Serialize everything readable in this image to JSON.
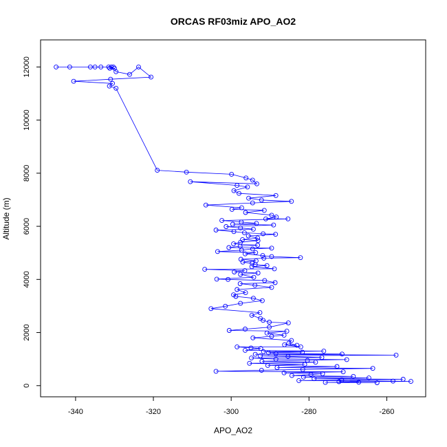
{
  "chart_data": {
    "type": "scatter",
    "title": "ORCAS RF03miz APO_AO2",
    "xlabel": "APO_AO2",
    "ylabel": "Altitude (m)",
    "xlim": [
      -349,
      -250
    ],
    "ylim": [
      -420,
      13020
    ],
    "xticks": [
      -340,
      -320,
      -300,
      -280,
      -260
    ],
    "yticks": [
      0,
      2000,
      4000,
      6000,
      8000,
      10000,
      12000
    ],
    "grid": false,
    "marker": "open-circle",
    "connect_points": true,
    "color": "#0000ff",
    "series": [
      {
        "points": [
          [
            -345,
            12000
          ],
          [
            -341.5,
            12000
          ],
          [
            -336.2,
            12000
          ],
          [
            -335,
            12000
          ],
          [
            -333.5,
            12000
          ],
          [
            -331.5,
            12000
          ],
          [
            -330.8,
            12000
          ],
          [
            -330.3,
            12000
          ],
          [
            -331.2,
            11950
          ],
          [
            -330,
            11950
          ],
          [
            -329.6,
            11820
          ],
          [
            -326.1,
            11720
          ],
          [
            -323.8,
            12000
          ],
          [
            -320.6,
            11620
          ],
          [
            -331,
            11540
          ],
          [
            -340.5,
            11460
          ],
          [
            -330.5,
            11380
          ],
          [
            -331.3,
            11280
          ],
          [
            -329.6,
            11200
          ],
          [
            -319,
            8110
          ],
          [
            -311.5,
            8040
          ],
          [
            -299.9,
            7960
          ],
          [
            -296.2,
            7820
          ],
          [
            -294.5,
            7740
          ],
          [
            -293.4,
            7600
          ],
          [
            -310.5,
            7680
          ],
          [
            -298.5,
            7540
          ],
          [
            -295.8,
            7480
          ],
          [
            -299.3,
            7340
          ],
          [
            -298,
            7240
          ],
          [
            -288.5,
            7160
          ],
          [
            -295.5,
            7060
          ],
          [
            -292.2,
            6990
          ],
          [
            -284.5,
            6940
          ],
          [
            -294.5,
            6880
          ],
          [
            -306.5,
            6800
          ],
          [
            -297.3,
            6700
          ],
          [
            -299.8,
            6640
          ],
          [
            -291.5,
            6600
          ],
          [
            -296.3,
            6520
          ],
          [
            -289.6,
            6420
          ],
          [
            -288.4,
            6350
          ],
          [
            -291.1,
            6280
          ],
          [
            -285.4,
            6280
          ],
          [
            -302.4,
            6220
          ],
          [
            -297.4,
            6160
          ],
          [
            -293.5,
            6110
          ],
          [
            -299.6,
            6080
          ],
          [
            -289.1,
            6050
          ],
          [
            -301.3,
            5990
          ],
          [
            -297.6,
            5940
          ],
          [
            -294.3,
            5890
          ],
          [
            -303.9,
            5860
          ],
          [
            -299.3,
            5800
          ],
          [
            -296.6,
            5760
          ],
          [
            -291.8,
            5720
          ],
          [
            -288.6,
            5700
          ],
          [
            -295.6,
            5640
          ],
          [
            -293.2,
            5560
          ],
          [
            -297.1,
            5500
          ],
          [
            -293.1,
            5460
          ],
          [
            -297.6,
            5400
          ],
          [
            -299.4,
            5340
          ],
          [
            -293.2,
            5290
          ],
          [
            -297.7,
            5250
          ],
          [
            -300.6,
            5200
          ],
          [
            -289.6,
            5180
          ],
          [
            -294.5,
            5150
          ],
          [
            -297.3,
            5100
          ],
          [
            -303.5,
            5050
          ],
          [
            -293.7,
            5010
          ],
          [
            -296.4,
            4960
          ],
          [
            -291.9,
            4900
          ],
          [
            -289.6,
            4860
          ],
          [
            -282.2,
            4820
          ],
          [
            -291.6,
            4800
          ],
          [
            -297.5,
            4760
          ],
          [
            -293.6,
            4700
          ],
          [
            -297,
            4650
          ],
          [
            -294.6,
            4600
          ],
          [
            -293.8,
            4560
          ],
          [
            -290.8,
            4520
          ],
          [
            -294.7,
            4480
          ],
          [
            -288.9,
            4400
          ],
          [
            -306.8,
            4380
          ],
          [
            -296.5,
            4330
          ],
          [
            -299.2,
            4280
          ],
          [
            -293.1,
            4240
          ],
          [
            -297.6,
            4190
          ],
          [
            -294.2,
            4080
          ],
          [
            -303.7,
            4010
          ],
          [
            -300.8,
            4000
          ],
          [
            -291.4,
            3960
          ],
          [
            -288.7,
            3880
          ],
          [
            -297.7,
            3840
          ],
          [
            -293.9,
            3780
          ],
          [
            -289.6,
            3700
          ],
          [
            -298.5,
            3620
          ],
          [
            -296.3,
            3500
          ],
          [
            -299.4,
            3420
          ],
          [
            -298.8,
            3360
          ],
          [
            -294.3,
            3290
          ],
          [
            -292,
            3200
          ],
          [
            -297.6,
            3100
          ],
          [
            -301.5,
            2990
          ],
          [
            -305.2,
            2900
          ],
          [
            -292.6,
            2750
          ],
          [
            -294.7,
            2650
          ],
          [
            -292.5,
            2530
          ],
          [
            -291.8,
            2460
          ],
          [
            -290.2,
            2390
          ],
          [
            -285.3,
            2360
          ],
          [
            -290.2,
            2200
          ],
          [
            -296.4,
            2130
          ],
          [
            -300.5,
            2080
          ],
          [
            -285.7,
            2050
          ],
          [
            -290.8,
            1980
          ],
          [
            -286.4,
            1900
          ],
          [
            -289.6,
            1860
          ],
          [
            -294.4,
            1800
          ],
          [
            -284.5,
            1700
          ],
          [
            -285.2,
            1600
          ],
          [
            -283.1,
            1520
          ],
          [
            -286.3,
            1540
          ],
          [
            -282.1,
            1460
          ],
          [
            -298.5,
            1460
          ],
          [
            -294.9,
            1420
          ],
          [
            -292.4,
            1400
          ],
          [
            -296.4,
            1330
          ],
          [
            -276.2,
            1300
          ],
          [
            -291.7,
            1280
          ],
          [
            -281.7,
            1260
          ],
          [
            -290.4,
            1240
          ],
          [
            -288.5,
            1210
          ],
          [
            -271.5,
            1190
          ],
          [
            -293.8,
            1180
          ],
          [
            -257.6,
            1150
          ],
          [
            -292.5,
            1120
          ],
          [
            -285.4,
            1100
          ],
          [
            -276.7,
            1060
          ],
          [
            -294.8,
            1040
          ],
          [
            -288.5,
            1000
          ],
          [
            -270.3,
            980
          ],
          [
            -280.4,
            950
          ],
          [
            -292.1,
            920
          ],
          [
            -278.3,
            880
          ],
          [
            -295.3,
            840
          ],
          [
            -281.1,
            800
          ],
          [
            -290.6,
            760
          ],
          [
            -272.8,
            720
          ],
          [
            -288.2,
            680
          ],
          [
            -263.6,
            650
          ],
          [
            -281.6,
            610
          ],
          [
            -292.2,
            580
          ],
          [
            -303.9,
            540
          ],
          [
            -271.2,
            520
          ],
          [
            -286.4,
            480
          ],
          [
            -276.5,
            450
          ],
          [
            -279.5,
            420
          ],
          [
            -284.4,
            380
          ],
          [
            -268.6,
            350
          ],
          [
            -281.4,
            320
          ],
          [
            -264.6,
            290
          ],
          [
            -278.7,
            260
          ],
          [
            -255.8,
            240
          ],
          [
            -271.6,
            210
          ],
          [
            -282.6,
            190
          ],
          [
            -258.4,
            170
          ],
          [
            -253.8,
            160
          ],
          [
            -272.3,
            150
          ],
          [
            -267.2,
            130
          ],
          [
            -275.8,
            120
          ],
          [
            -262.5,
            110
          ]
        ]
      }
    ]
  }
}
